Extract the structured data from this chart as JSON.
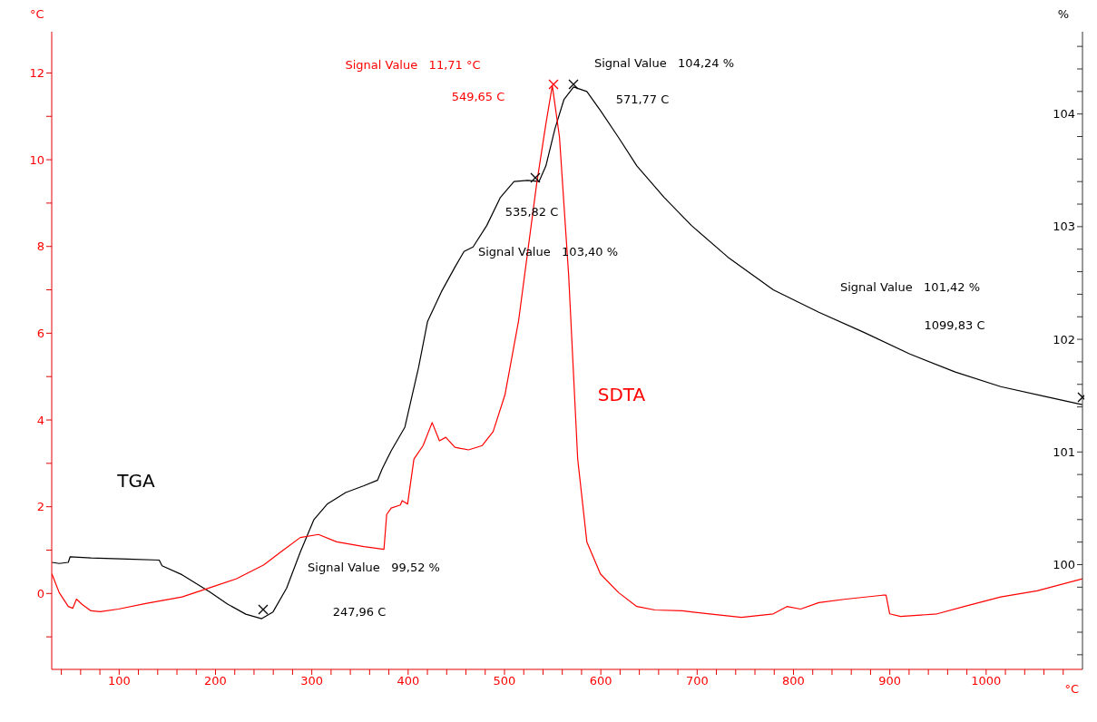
{
  "chart_data": {
    "type": "line",
    "xlabel": "°C",
    "ylabel": "°C",
    "y2label": "%",
    "xlim": [
      30,
      1100
    ],
    "xticks": [
      {
        "value": 40,
        "label": null
      },
      {
        "value": 60,
        "label": null
      },
      {
        "value": 80,
        "label": null
      },
      100,
      {
        "value": 120,
        "label": null
      },
      {
        "value": 140,
        "label": null
      },
      {
        "value": 160,
        "label": null
      },
      {
        "value": 180,
        "label": null
      },
      200,
      {
        "value": 220,
        "label": null
      },
      {
        "value": 240,
        "label": null
      },
      {
        "value": 260,
        "label": null
      },
      {
        "value": 280,
        "label": null
      },
      300,
      {
        "value": 320,
        "label": null
      },
      {
        "value": 340,
        "label": null
      },
      {
        "value": 360,
        "label": null
      },
      {
        "value": 380,
        "label": null
      },
      400,
      {
        "value": 420,
        "label": null
      },
      {
        "value": 440,
        "label": null
      },
      {
        "value": 460,
        "label": null
      },
      {
        "value": 480,
        "label": null
      },
      500,
      {
        "value": 520,
        "label": null
      },
      {
        "value": 540,
        "label": null
      },
      {
        "value": 560,
        "label": null
      },
      {
        "value": 580,
        "label": null
      },
      600,
      {
        "value": 620,
        "label": null
      },
      {
        "value": 640,
        "label": null
      },
      {
        "value": 660,
        "label": null
      },
      {
        "value": 680,
        "label": null
      },
      700,
      {
        "value": 720,
        "label": null
      },
      {
        "value": 740,
        "label": null
      },
      {
        "value": 760,
        "label": null
      },
      {
        "value": 780,
        "label": null
      },
      800,
      {
        "value": 820,
        "label": null
      },
      {
        "value": 840,
        "label": null
      },
      {
        "value": 860,
        "label": null
      },
      {
        "value": 880,
        "label": null
      },
      900,
      {
        "value": 920,
        "label": null
      },
      {
        "value": 940,
        "label": null
      },
      {
        "value": 960,
        "label": null
      },
      {
        "value": 980,
        "label": null
      },
      1000,
      {
        "value": 1020,
        "label": null
      },
      {
        "value": 1040,
        "label": null
      },
      {
        "value": 1060,
        "label": null
      },
      {
        "value": 1080,
        "label": null
      }
    ],
    "ylim": [
      -1.75,
      12.95
    ],
    "yticks": [
      {
        "value": -1,
        "label": null
      },
      0,
      {
        "value": 1,
        "label": null
      },
      2,
      {
        "value": 3,
        "label": null
      },
      4,
      {
        "value": 5,
        "label": null
      },
      6,
      {
        "value": 7,
        "label": null
      },
      8,
      {
        "value": 9,
        "label": null
      },
      10,
      {
        "value": 11,
        "label": null
      },
      12
    ],
    "y2lim": [
      99.07,
      104.73
    ],
    "y2ticks": [
      {
        "value": 99.2,
        "label": null
      },
      {
        "value": 99.4,
        "label": null
      },
      {
        "value": 99.6,
        "label": null
      },
      {
        "value": 99.8,
        "label": null
      },
      100,
      {
        "value": 100.2,
        "label": null
      },
      {
        "value": 100.4,
        "label": null
      },
      {
        "value": 100.6,
        "label": null
      },
      {
        "value": 100.8,
        "label": null
      },
      101,
      {
        "value": 101.2,
        "label": null
      },
      {
        "value": 101.4,
        "label": null
      },
      {
        "value": 101.6,
        "label": null
      },
      {
        "value": 101.8,
        "label": null
      },
      102,
      {
        "value": 102.2,
        "label": null
      },
      {
        "value": 102.4,
        "label": null
      },
      {
        "value": 102.6,
        "label": null
      },
      {
        "value": 102.8,
        "label": null
      },
      103,
      {
        "value": 103.2,
        "label": null
      },
      {
        "value": 103.4,
        "label": null
      },
      {
        "value": 103.6,
        "label": null
      },
      {
        "value": 103.8,
        "label": null
      },
      104,
      {
        "value": 104.2,
        "label": null
      },
      {
        "value": 104.4,
        "label": null
      },
      {
        "value": 104.6,
        "label": null
      }
    ],
    "grid": false,
    "legend": false,
    "marker": "none",
    "line_style": "solid",
    "series": [
      {
        "name": "TGA",
        "color": "#000000",
        "axis": "y2",
        "x": [
          30.2,
          37.8,
          47.2,
          49.1,
          70.8,
          108.6,
          141.6,
          144.5,
          165.3,
          193.6,
          212.5,
          231.4,
          247.96,
          259.7,
          273.8,
          288.0,
          302.2,
          316.3,
          335.2,
          354.1,
          368.3,
          373.0,
          382.4,
          396.6,
          410.8,
          420.2,
          434.4,
          448.5,
          458.0,
          467.4,
          481.6,
          495.8,
          509.9,
          524.1,
          535.82,
          543.0,
          552.4,
          561.8,
          571.77,
          585.5,
          599.6,
          618.5,
          637.4,
          665.7,
          694.1,
          731.8,
          779.0,
          826.3,
          873.5,
          920.7,
          967.9,
          1015.1,
          1062.3,
          1099.83
        ],
        "values": [
          100.02,
          100.01,
          100.02,
          100.07,
          100.06,
          100.05,
          100.04,
          99.99,
          99.91,
          99.76,
          99.65,
          99.56,
          99.52,
          99.58,
          99.79,
          100.11,
          100.4,
          100.54,
          100.64,
          100.7,
          100.75,
          100.85,
          101.01,
          101.22,
          101.75,
          102.16,
          102.42,
          102.64,
          102.78,
          102.82,
          103.01,
          103.26,
          103.4,
          103.41,
          103.4,
          103.54,
          103.87,
          104.13,
          104.24,
          104.2,
          104.03,
          103.79,
          103.54,
          103.26,
          103.01,
          102.73,
          102.44,
          102.24,
          102.06,
          101.87,
          101.71,
          101.58,
          101.49,
          101.42
        ]
      },
      {
        "name": "SDTA",
        "color": "#ff0000",
        "x": [
          30.2,
          37.8,
          47.2,
          51.9,
          55.7,
          61.4,
          70.8,
          80.3,
          99.2,
          127.5,
          165.3,
          193.6,
          221.9,
          250.2,
          269.1,
          288.0,
          306.9,
          325.8,
          354.1,
          374.9,
          377.7,
          382.4,
          391.9,
          393.8,
          399.4,
          406.0,
          415.5,
          424.9,
          432.5,
          439.1,
          448.5,
          462.7,
          476.9,
          488.2,
          500.5,
          514.6,
          533.5,
          543.0,
          549.65,
          557.1,
          566.6,
          576.0,
          585.5,
          599.6,
          618.5,
          637.4,
          656.3,
          684.6,
          713.0,
          746.0,
          779.0,
          793.2,
          807.4,
          826.3,
          854.6,
          892.4,
          896.1,
          899.9,
          911.2,
          949.0,
          977.3,
          1015.1,
          1052.9,
          1100
        ],
        "values": [
          0.45,
          0.02,
          -0.3,
          -0.34,
          -0.13,
          -0.25,
          -0.4,
          -0.42,
          -0.36,
          -0.23,
          -0.08,
          0.13,
          0.34,
          0.66,
          0.98,
          1.29,
          1.36,
          1.19,
          1.08,
          1.02,
          1.82,
          1.97,
          2.04,
          2.14,
          2.06,
          3.1,
          3.41,
          3.94,
          3.52,
          3.6,
          3.37,
          3.31,
          3.41,
          3.73,
          4.58,
          6.28,
          9.46,
          10.83,
          11.71,
          10.52,
          7.34,
          3.1,
          1.19,
          0.45,
          0.02,
          -0.3,
          -0.38,
          -0.4,
          -0.47,
          -0.55,
          -0.47,
          -0.3,
          -0.36,
          -0.21,
          -0.13,
          -0.04,
          -0.04,
          -0.47,
          -0.53,
          -0.47,
          -0.3,
          -0.08,
          0.06,
          0.34
        ]
      }
    ],
    "annotations": [
      "Signal Value   11,71 °C",
      "549,65 C",
      "Signal Value   104,24 %",
      "571,77 C",
      "535,82 C",
      "Signal Value   103,40 %",
      "Signal Value   99,52 %",
      "247,96 C",
      "Signal Value   101,42 %",
      "1099,83 C"
    ]
  }
}
